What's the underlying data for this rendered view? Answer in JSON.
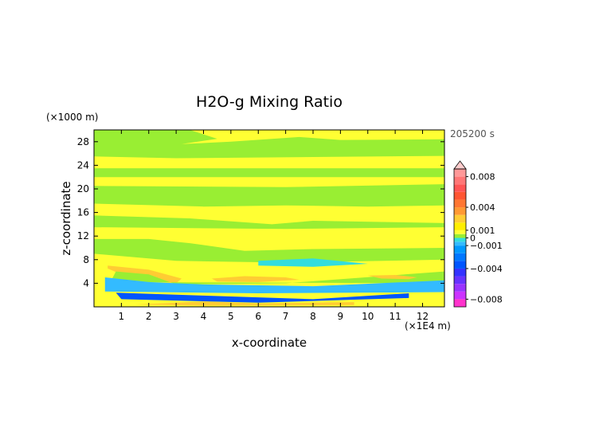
{
  "chart_data": {
    "type": "heatmap",
    "title": "H2O-g Mixing Ratio",
    "time_label": "205200 s",
    "xlabel": "x-coordinate",
    "ylabel": "z-coordinate",
    "x_unit": "(×1E4 m)",
    "y_unit": "(×1000 m)",
    "x_range": [
      0,
      12.8
    ],
    "y_range": [
      0,
      30
    ],
    "x_ticks": [
      "1",
      "2",
      "3",
      "4",
      "5",
      "6",
      "7",
      "8",
      "9",
      "10",
      "11",
      "12"
    ],
    "y_ticks": [
      "4",
      "8",
      "12",
      "16",
      "20",
      "24",
      "28"
    ],
    "colorbar": {
      "labels": [
        "0.008",
        "0.004",
        "0.001",
        "0",
        "-0.001",
        "-0.004",
        "-0.008"
      ],
      "levels": [
        -0.009,
        -0.008,
        -0.007,
        -0.006,
        -0.005,
        -0.004,
        -0.003,
        -0.002,
        -0.001,
        -0.0005,
        0,
        0.0005,
        0.001,
        0.002,
        0.003,
        0.004,
        0.005,
        0.006,
        0.007,
        0.008,
        0.009
      ],
      "colors": [
        "#ff33cc",
        "#cc33ff",
        "#9933ff",
        "#6633ff",
        "#3333ff",
        "#0055ff",
        "#0077ff",
        "#0099ff",
        "#33bbff",
        "#33dddd",
        "#99ee33",
        "#ffff33",
        "#ffee00",
        "#ffcc33",
        "#ff9933",
        "#ff7733",
        "#ff5533",
        "#ff5555",
        "#ff7777",
        "#ff9999"
      ],
      "extend_color": "#ffcccc"
    },
    "features": [
      {
        "level": 0.0005,
        "points": [
          [
            0,
            30
          ],
          [
            12.8,
            30
          ],
          [
            12.8,
            0
          ],
          [
            0,
            0
          ]
        ]
      },
      {
        "level": 0,
        "points": [
          [
            0,
            30
          ],
          [
            3.5,
            30
          ],
          [
            4.5,
            28.5
          ],
          [
            3.2,
            27.6
          ],
          [
            5.0,
            28.0
          ],
          [
            7.5,
            28.8
          ],
          [
            9.0,
            28.3
          ],
          [
            12.8,
            28.4
          ],
          [
            12.8,
            25.6
          ],
          [
            8.0,
            25.4
          ],
          [
            3.0,
            25.2
          ],
          [
            0,
            25.5
          ]
        ]
      },
      {
        "level": 0,
        "points": [
          [
            0,
            23.5
          ],
          [
            12.8,
            23.5
          ],
          [
            12.8,
            22.0
          ],
          [
            0,
            22.0
          ]
        ]
      },
      {
        "level": 0,
        "points": [
          [
            0,
            20.5
          ],
          [
            7.0,
            20.3
          ],
          [
            12.8,
            20.8
          ],
          [
            12.8,
            17.2
          ],
          [
            10.0,
            17.0
          ],
          [
            7.0,
            17.2
          ],
          [
            4.0,
            17.0
          ],
          [
            0,
            17.5
          ]
        ]
      },
      {
        "level": 0,
        "points": [
          [
            0,
            15.5
          ],
          [
            3.5,
            15.0
          ],
          [
            6.5,
            14.0
          ],
          [
            8.0,
            14.6
          ],
          [
            12.8,
            14.2
          ],
          [
            12.8,
            13.5
          ],
          [
            7.0,
            13.2
          ],
          [
            0,
            13.5
          ]
        ]
      },
      {
        "level": 0,
        "points": [
          [
            0,
            11.5
          ],
          [
            2.0,
            11.5
          ],
          [
            3.5,
            10.8
          ],
          [
            5.5,
            9.5
          ],
          [
            8.0,
            9.8
          ],
          [
            12.8,
            10.0
          ],
          [
            12.8,
            8.0
          ],
          [
            7.0,
            7.5
          ],
          [
            3.0,
            7.8
          ],
          [
            0,
            9.0
          ]
        ]
      },
      {
        "level": 0.002,
        "points": [
          [
            0.5,
            7.0
          ],
          [
            2.0,
            6.3
          ],
          [
            3.2,
            4.8
          ],
          [
            3.0,
            4.0
          ],
          [
            2.0,
            4.4
          ],
          [
            1.0,
            5.5
          ],
          [
            0.5,
            6.5
          ]
        ]
      },
      {
        "level": 0,
        "points": [
          [
            0.8,
            6.0
          ],
          [
            2.0,
            5.5
          ],
          [
            3.0,
            3.8
          ],
          [
            7.0,
            4.0
          ],
          [
            12.8,
            6.0
          ],
          [
            12.8,
            4.0
          ],
          [
            0.6,
            4.2
          ]
        ]
      },
      {
        "level": -0.0005,
        "points": [
          [
            6.0,
            7.8
          ],
          [
            8.0,
            8.2
          ],
          [
            10.0,
            7.3
          ],
          [
            8.0,
            6.8
          ],
          [
            6.0,
            7.0
          ]
        ]
      },
      {
        "level": -0.001,
        "points": [
          [
            0.4,
            5.0
          ],
          [
            2.0,
            4.2
          ],
          [
            4.0,
            3.8
          ],
          [
            8.0,
            3.5
          ],
          [
            12.8,
            4.5
          ],
          [
            12.8,
            2.5
          ],
          [
            6.0,
            2.3
          ],
          [
            0.4,
            2.6
          ]
        ]
      },
      {
        "level": -0.004,
        "points": [
          [
            0.8,
            2.4
          ],
          [
            4.0,
            1.9
          ],
          [
            8.0,
            1.3
          ],
          [
            11.5,
            2.3
          ],
          [
            11.5,
            1.5
          ],
          [
            6.0,
            0.7
          ],
          [
            1.0,
            1.3
          ]
        ]
      },
      {
        "level": 0.002,
        "points": [
          [
            4.3,
            4.8
          ],
          [
            5.5,
            5.2
          ],
          [
            7.0,
            5.0
          ],
          [
            7.5,
            4.6
          ],
          [
            6.0,
            4.2
          ],
          [
            4.5,
            4.3
          ]
        ]
      },
      {
        "level": 0.002,
        "points": [
          [
            10.0,
            5.3
          ],
          [
            11.0,
            5.4
          ],
          [
            11.8,
            5.0
          ],
          [
            11.5,
            4.7
          ],
          [
            10.5,
            4.8
          ]
        ]
      },
      {
        "level": 0.002,
        "points": [
          [
            1.5,
            0.4
          ],
          [
            4.0,
            0.9
          ],
          [
            6.0,
            0.6
          ],
          [
            9.5,
            0.8
          ],
          [
            9.5,
            0.3
          ],
          [
            4.0,
            0.2
          ]
        ]
      }
    ]
  }
}
